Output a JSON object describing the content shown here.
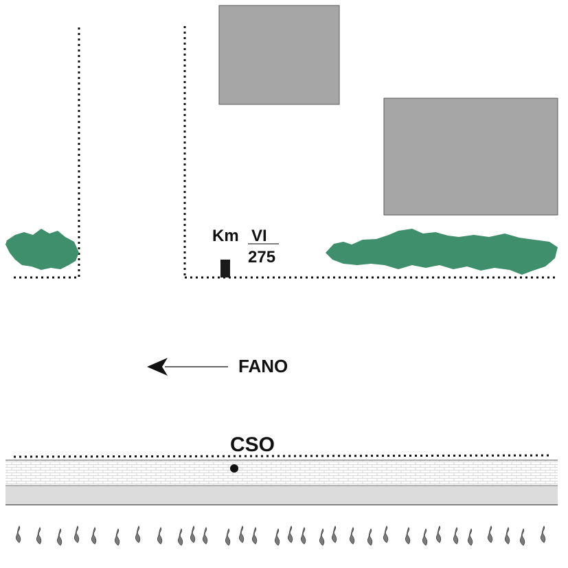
{
  "marker": {
    "prefix": "Km",
    "roman": "VI",
    "number": "275"
  },
  "direction": {
    "label": "FANO",
    "arrow": "left"
  },
  "point": {
    "label": "CSO"
  },
  "colors": {
    "building": "#a6a6a6",
    "vegetation": "#3f8f6c",
    "stone": "#1a1a1a",
    "sidewalk": "#dcdcdc",
    "curb_pattern": "#c9c9c9",
    "plant": "#7a7a7a"
  },
  "icons": {
    "stone": "milestone-icon",
    "arrow": "arrow-left-icon",
    "point": "dot-icon",
    "plants": "grass-tuft-icon"
  }
}
